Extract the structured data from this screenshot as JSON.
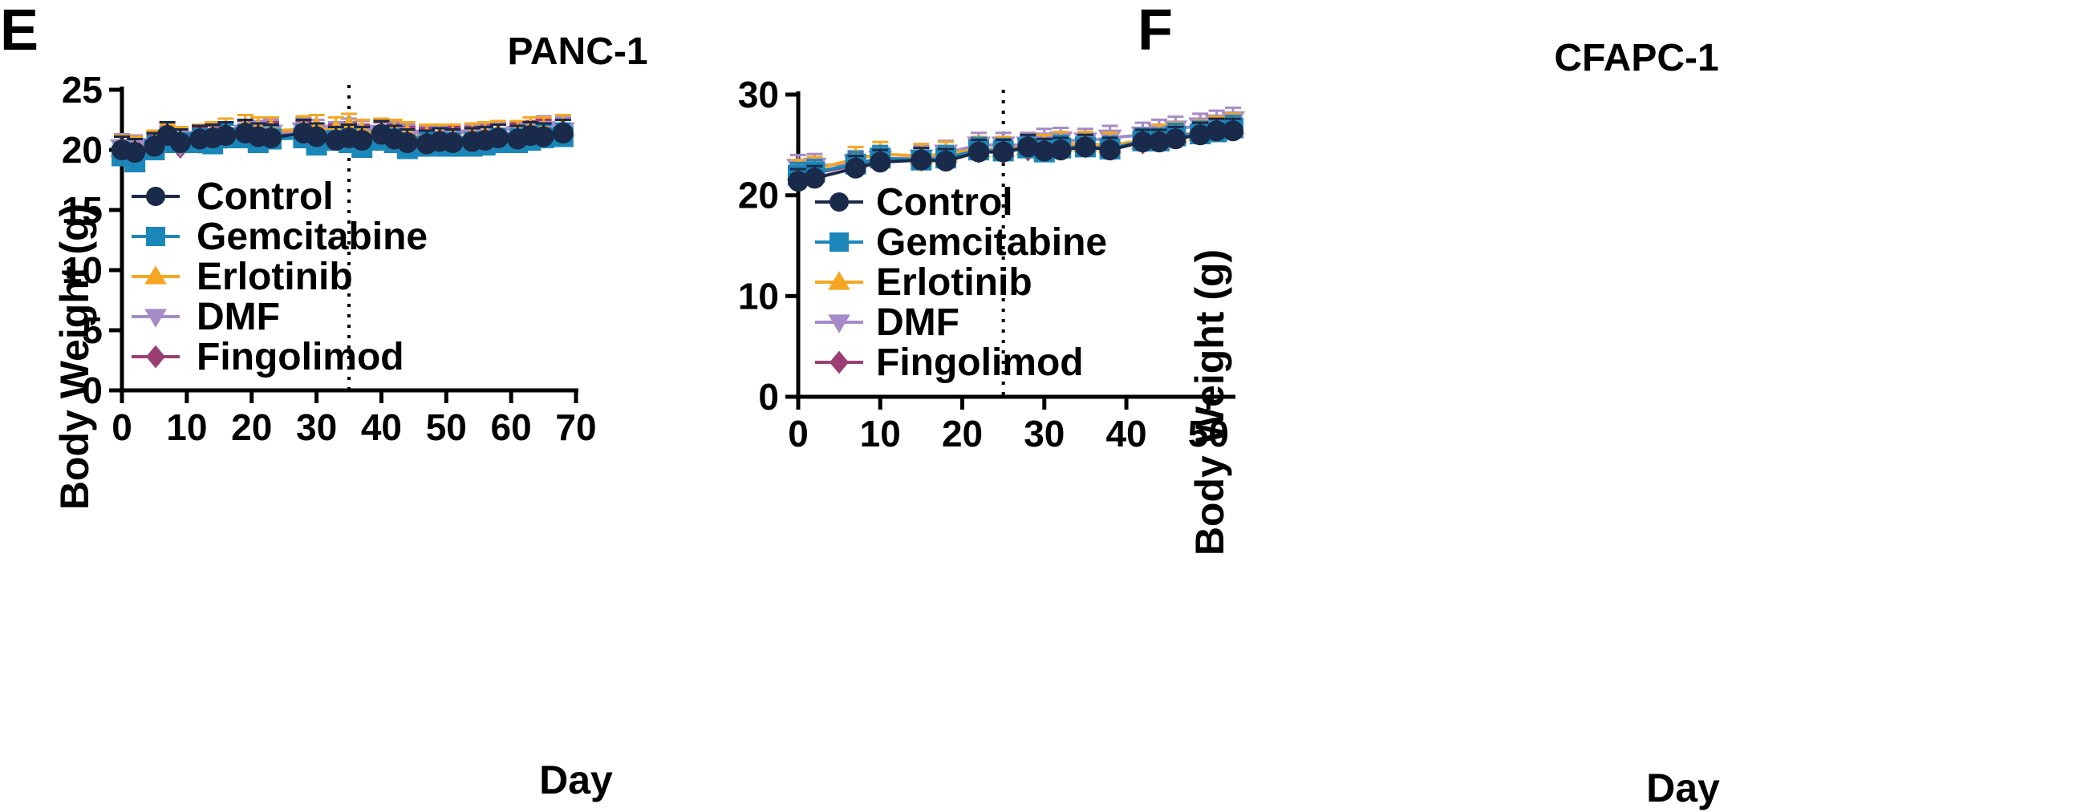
{
  "chart_data": [
    {
      "type": "line",
      "panel_label": "E",
      "title": "PANC-1",
      "xlabel": "Day",
      "ylabel": "Body Weight (g)",
      "xlim": [
        0,
        70
      ],
      "ylim": [
        0,
        25
      ],
      "xticks": [
        0,
        10,
        20,
        30,
        40,
        50,
        60,
        70
      ],
      "yticks": [
        0,
        5,
        10,
        15,
        20,
        25
      ],
      "vline_x": 35,
      "legend_position": "left-center",
      "x": [
        0,
        2,
        5,
        7,
        9,
        12,
        14,
        16,
        19,
        21,
        23,
        28,
        30,
        33,
        35,
        37,
        40,
        42,
        44,
        47,
        49,
        51,
        54,
        56,
        58,
        61,
        63,
        65,
        68
      ],
      "series": [
        {
          "name": "Control",
          "color": "#1a2a4a",
          "marker": "circle",
          "values": [
            20.0,
            19.8,
            20.3,
            21.2,
            20.6,
            20.9,
            21.0,
            21.2,
            21.4,
            21.1,
            21.0,
            21.4,
            21.1,
            20.8,
            21.0,
            20.8,
            21.3,
            20.9,
            20.6,
            20.5,
            20.7,
            20.6,
            20.7,
            20.8,
            21.0,
            20.9,
            21.2,
            21.1,
            21.4
          ]
        },
        {
          "name": "Gemcitabine",
          "color": "#1b87b8",
          "marker": "square",
          "values": [
            19.5,
            19.0,
            20.0,
            20.6,
            20.6,
            20.6,
            20.5,
            21.0,
            21.0,
            20.6,
            20.9,
            21.0,
            20.4,
            20.8,
            20.6,
            20.2,
            20.8,
            20.6,
            20.1,
            20.3,
            20.3,
            20.3,
            20.3,
            20.4,
            20.6,
            20.6,
            20.8,
            21.0,
            21.1
          ]
        },
        {
          "name": "Erlotinib",
          "color": "#f5a623",
          "marker": "triangle-up",
          "values": [
            20.1,
            20.0,
            20.5,
            21.0,
            20.8,
            21.0,
            21.2,
            21.5,
            21.8,
            21.6,
            21.6,
            21.7,
            21.8,
            21.6,
            21.9,
            21.4,
            21.5,
            21.4,
            21.2,
            21.0,
            21.0,
            21.0,
            21.1,
            21.2,
            21.3,
            21.3,
            21.6,
            21.6,
            21.8
          ]
        },
        {
          "name": "DMF",
          "color": "#a58bc7",
          "marker": "triangle-down",
          "values": [
            20.2,
            20.1,
            20.3,
            20.8,
            20.4,
            20.9,
            21.0,
            21.2,
            21.4,
            21.3,
            21.4,
            21.6,
            21.4,
            21.2,
            21.5,
            21.3,
            21.4,
            21.2,
            21.0,
            20.9,
            20.9,
            21.0,
            21.0,
            21.1,
            21.2,
            21.3,
            21.6,
            21.7,
            21.6
          ]
        },
        {
          "name": "Fingolimod",
          "color": "#9b3e74",
          "marker": "diamond",
          "values": [
            20.0,
            19.9,
            20.2,
            20.8,
            20.3,
            20.7,
            20.9,
            21.1,
            21.3,
            21.1,
            21.2,
            21.3,
            21.1,
            21.0,
            21.2,
            21.0,
            21.2,
            21.0,
            20.8,
            20.7,
            20.7,
            20.8,
            20.8,
            20.9,
            21.0,
            21.1,
            21.3,
            21.4,
            21.4
          ]
        }
      ]
    },
    {
      "type": "line",
      "panel_label": "F",
      "title": "CFAPC-1",
      "xlabel": "Day",
      "ylabel": "Body Weight (g)",
      "xlim": [
        0,
        53
      ],
      "ylim": [
        0,
        30
      ],
      "xticks": [
        0,
        10,
        20,
        30,
        40,
        50
      ],
      "yticks": [
        0,
        10,
        20,
        30
      ],
      "vline_x": 25,
      "legend_position": "left-center",
      "x": [
        0,
        2,
        7,
        10,
        15,
        18,
        22,
        25,
        28,
        30,
        32,
        35,
        38,
        42,
        44,
        46,
        49,
        51,
        53
      ],
      "series": [
        {
          "name": "Control",
          "color": "#1a2a4a",
          "marker": "circle",
          "values": [
            21.4,
            21.7,
            22.7,
            23.3,
            23.5,
            23.4,
            24.3,
            24.3,
            24.8,
            24.4,
            24.5,
            24.8,
            24.5,
            25.3,
            25.3,
            25.6,
            26.0,
            26.4,
            26.4
          ]
        },
        {
          "name": "Gemcitabine",
          "color": "#1b87b8",
          "marker": "square",
          "values": [
            22.0,
            22.3,
            23.1,
            23.7,
            23.5,
            23.7,
            24.5,
            24.4,
            24.7,
            24.3,
            24.7,
            24.8,
            24.6,
            25.4,
            25.4,
            25.9,
            26.1,
            26.3,
            26.7
          ]
        },
        {
          "name": "Erlotinib",
          "color": "#f5a623",
          "marker": "triangle-up",
          "values": [
            22.3,
            22.6,
            23.6,
            24.1,
            23.9,
            24.1,
            24.6,
            24.6,
            24.8,
            24.8,
            25.1,
            25.1,
            25.0,
            25.4,
            25.8,
            26.0,
            26.2,
            26.6,
            26.9
          ]
        },
        {
          "name": "DMF",
          "color": "#a58bc7",
          "marker": "triangle-down",
          "values": [
            22.8,
            22.9,
            23.2,
            23.6,
            23.7,
            24.2,
            25.0,
            25.0,
            25.0,
            25.4,
            25.5,
            25.4,
            25.7,
            26.0,
            26.3,
            26.6,
            26.9,
            27.2,
            27.5
          ]
        },
        {
          "name": "Fingolimod",
          "color": "#9b3e74",
          "marker": "diamond",
          "values": [
            21.8,
            22.2,
            23.0,
            23.6,
            23.6,
            23.6,
            24.4,
            24.4,
            24.6,
            24.6,
            24.8,
            24.9,
            24.9,
            25.3,
            25.6,
            25.9,
            26.3,
            26.6,
            26.9
          ]
        }
      ]
    }
  ]
}
